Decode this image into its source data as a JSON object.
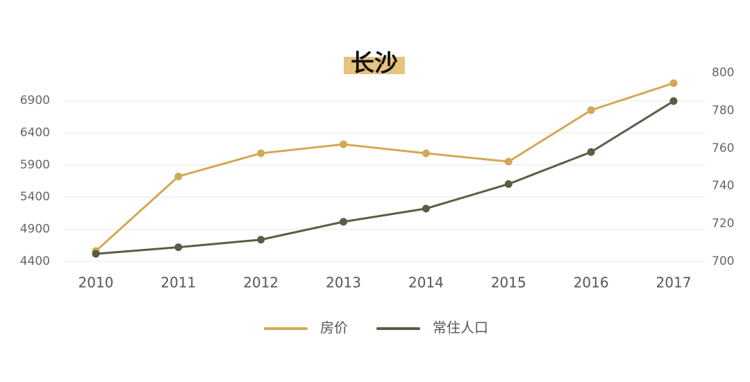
{
  "chart_data": {
    "type": "line",
    "title": "长沙",
    "categories": [
      "2010",
      "2011",
      "2012",
      "2013",
      "2014",
      "2015",
      "2016",
      "2017"
    ],
    "y_left": {
      "ticks": [
        "4400",
        "4900",
        "5400",
        "5900",
        "6400",
        "6900"
      ],
      "range": [
        4400,
        6900
      ]
    },
    "y_right": {
      "ticks": [
        "700",
        "720",
        "740",
        "760",
        "780",
        "800"
      ],
      "range": [
        700,
        800
      ]
    },
    "series": [
      {
        "name": "房价",
        "axis": "left",
        "color": "#D3A855",
        "values": [
          4560,
          5720,
          6080,
          6220,
          6080,
          5950,
          6750,
          7170
        ]
      },
      {
        "name": "常住人口",
        "axis": "right",
        "color": "#5A5D45",
        "values": [
          704,
          707.5,
          711.5,
          721,
          728,
          741,
          758,
          785
        ]
      }
    ],
    "grid": true,
    "legend": "bottom-center"
  },
  "colors": {
    "title_highlight": "#E8C27F",
    "grid": "#E6E6E6"
  }
}
